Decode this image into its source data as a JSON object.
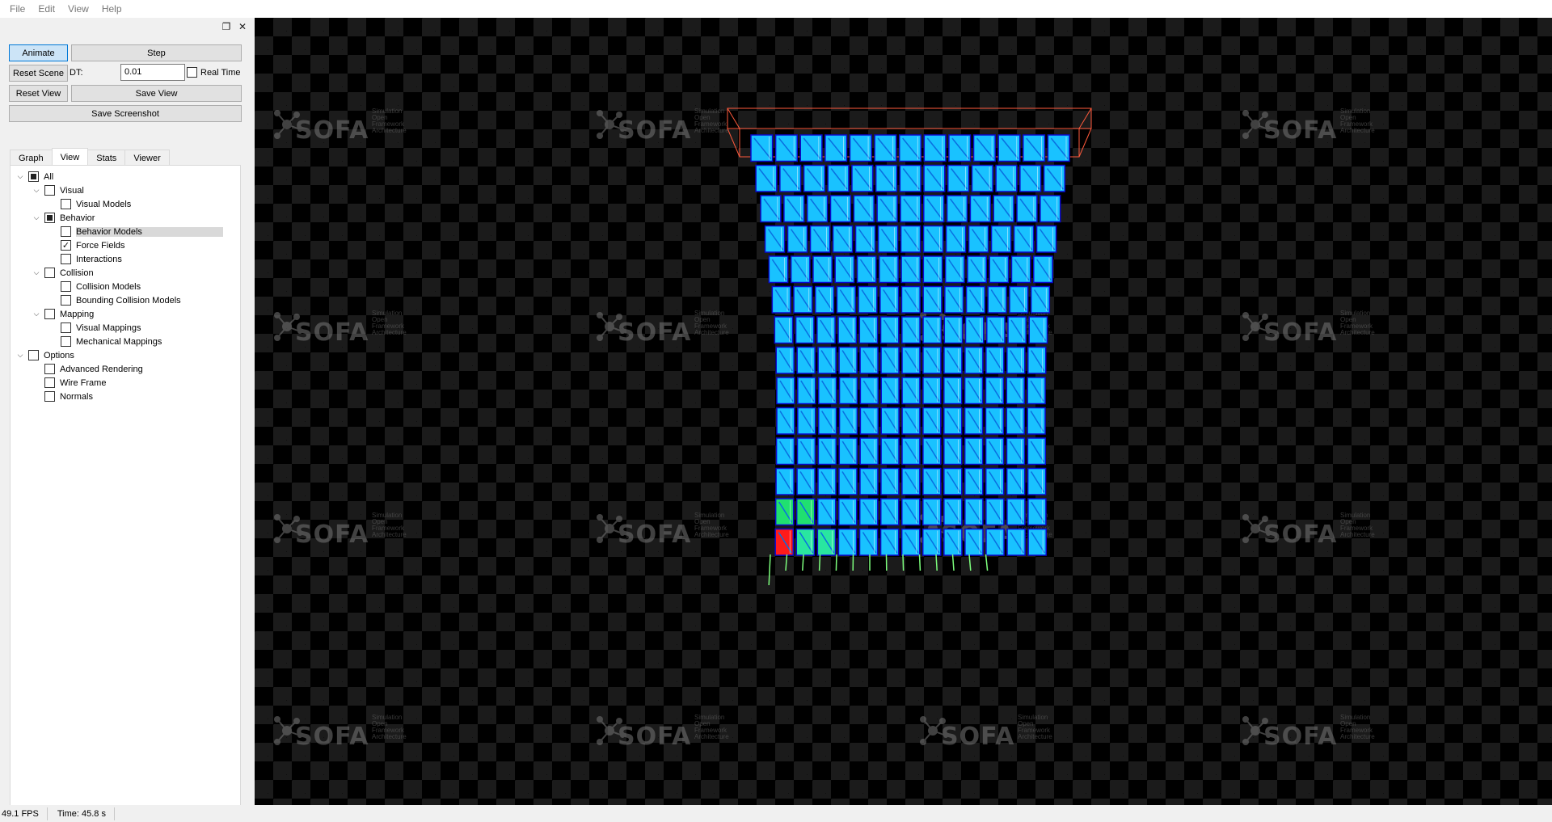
{
  "menu": [
    "File",
    "Edit",
    "View",
    "Help"
  ],
  "dock": {
    "float_icon": "❐",
    "close_icon": "✕"
  },
  "controls": {
    "animate": "Animate",
    "step": "Step",
    "reset_scene": "Reset Scene",
    "dt_label": "DT:",
    "dt_value": "0.01",
    "real_time": "Real Time",
    "reset_view": "Reset View",
    "save_view": "Save View",
    "save_screenshot": "Save Screenshot"
  },
  "tabs": [
    "Graph",
    "View",
    "Stats",
    "Viewer"
  ],
  "active_tab": "View",
  "tree": [
    {
      "label": "All",
      "level": 0,
      "chev": true,
      "state": "partial"
    },
    {
      "label": "Visual",
      "level": 1,
      "chev": true,
      "state": "off"
    },
    {
      "label": "Visual Models",
      "level": 2,
      "chev": false,
      "state": "off"
    },
    {
      "label": "Behavior",
      "level": 1,
      "chev": true,
      "state": "partial"
    },
    {
      "label": "Behavior Models",
      "level": 2,
      "chev": false,
      "state": "off",
      "selected": true
    },
    {
      "label": "Force Fields",
      "level": 2,
      "chev": false,
      "state": "checked"
    },
    {
      "label": "Interactions",
      "level": 2,
      "chev": false,
      "state": "off"
    },
    {
      "label": "Collision",
      "level": 1,
      "chev": true,
      "state": "off"
    },
    {
      "label": "Collision Models",
      "level": 2,
      "chev": false,
      "state": "off"
    },
    {
      "label": "Bounding Collision Models",
      "level": 2,
      "chev": false,
      "state": "off"
    },
    {
      "label": "Mapping",
      "level": 1,
      "chev": true,
      "state": "off"
    },
    {
      "label": "Visual Mappings",
      "level": 2,
      "chev": false,
      "state": "off"
    },
    {
      "label": "Mechanical Mappings",
      "level": 2,
      "chev": false,
      "state": "off"
    },
    {
      "label": "Options",
      "level": 0,
      "chev": true,
      "state": "off"
    },
    {
      "label": "Advanced Rendering",
      "level": 1,
      "chev": false,
      "state": "off"
    },
    {
      "label": "Wire Frame",
      "level": 1,
      "chev": false,
      "state": "off"
    },
    {
      "label": "Normals",
      "level": 1,
      "chev": false,
      "state": "off"
    }
  ],
  "watermark": {
    "text": "SOFA",
    "sub": [
      "Simulation",
      "Open",
      "Framework",
      "Architecture"
    ]
  },
  "status": {
    "fps": "49.1 FPS",
    "time": "Time: 45.8 s"
  },
  "colors": {
    "grid_face": "#19c2ff",
    "grid_edge": "#0a0ad0",
    "box": "#ff5a3c",
    "spring": "#7dff7d",
    "stress": "#ff1a1a"
  }
}
